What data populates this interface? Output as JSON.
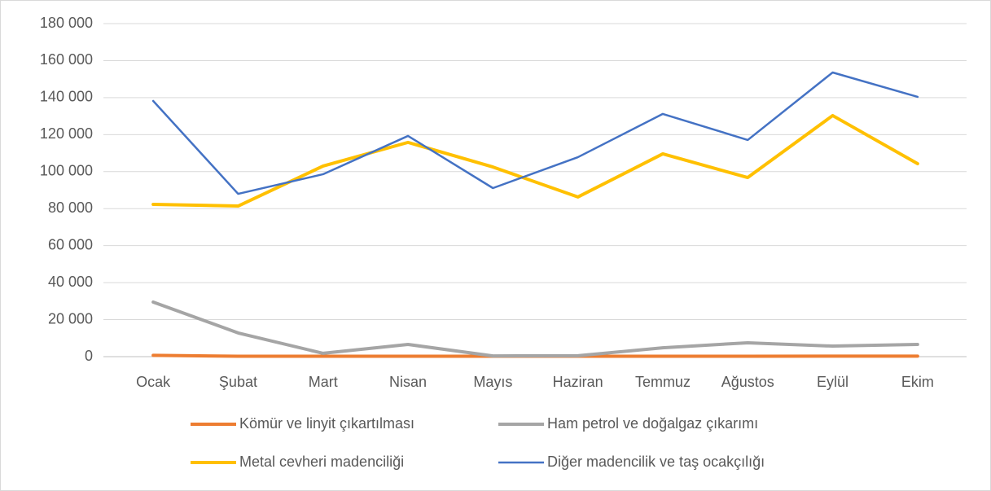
{
  "chart_data": {
    "type": "line",
    "categories": [
      "Ocak",
      "Şubat",
      "Mart",
      "Nisan",
      "Mayıs",
      "Haziran",
      "Temmuz",
      "Ağustos",
      "Eylül",
      "Ekim"
    ],
    "series": [
      {
        "name": "Kömür ve linyit çıkartılması",
        "color": "#ed7d31",
        "values": [
          700,
          200,
          200,
          200,
          200,
          200,
          200,
          200,
          300,
          300
        ]
      },
      {
        "name": "Ham petrol ve doğalgaz çıkarımı",
        "color": "#a5a5a5",
        "values": [
          29500,
          12800,
          1800,
          6600,
          400,
          500,
          4800,
          7500,
          5700,
          6600
        ]
      },
      {
        "name": "Metal cevheri madenciliği",
        "color": "#ffc000",
        "values": [
          82300,
          81400,
          103000,
          115800,
          102500,
          86300,
          109600,
          96800,
          130300,
          104300
        ]
      },
      {
        "name": "Diğer madencilik ve taş ocakçılığı",
        "color": "#4472c4",
        "values": [
          138200,
          88000,
          98600,
          119300,
          91100,
          107800,
          131200,
          117100,
          153600,
          140400
        ]
      }
    ],
    "ylim": [
      0,
      180000
    ],
    "yticks": [
      0,
      {
        "value": 20000,
        "label": "20 000"
      },
      {
        "value": 40000,
        "label": "40 000"
      },
      {
        "value": 60000,
        "label": "60 000"
      },
      {
        "value": 80000,
        "label": "80 000"
      },
      {
        "value": 100000,
        "label": "100 000"
      },
      {
        "value": 120000,
        "label": "120 000"
      },
      {
        "value": 140000,
        "label": "140 000"
      },
      {
        "value": 160000,
        "label": "160 000"
      },
      {
        "value": 180000,
        "label": "180 000"
      }
    ],
    "grid": true,
    "legend": "bottom"
  }
}
